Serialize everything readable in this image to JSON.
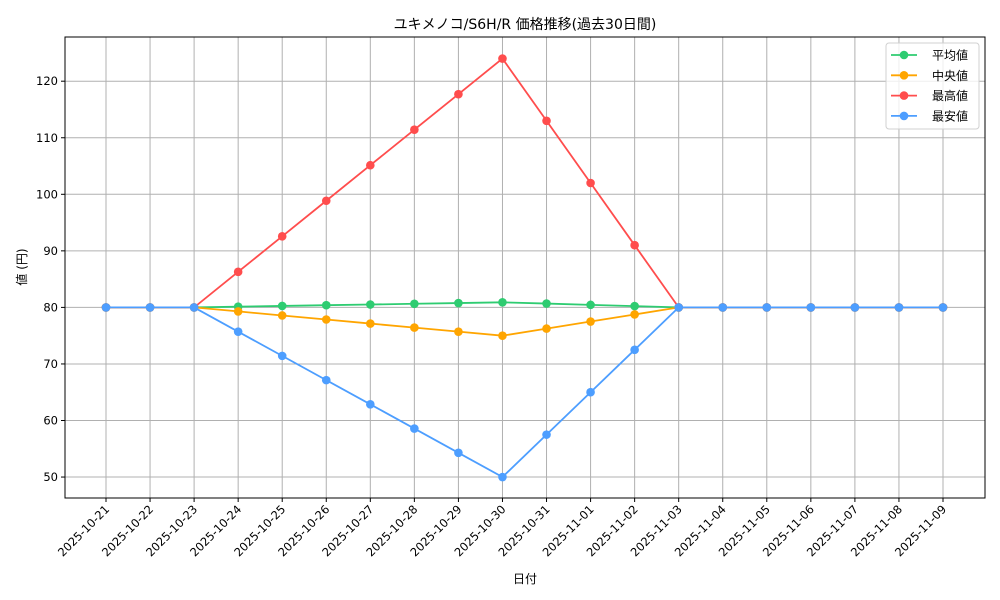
{
  "chart_data": {
    "type": "line",
    "title": "ユキメノコ/S6H/R 価格推移(過去30日間)",
    "xlabel": "日付",
    "ylabel": "値 (円)",
    "ylim": [
      46.5,
      127.8
    ],
    "yticks": [
      50,
      60,
      70,
      80,
      90,
      100,
      110,
      120
    ],
    "grid": true,
    "legend_position": "upper right",
    "categories": [
      "2025-10-21",
      "2025-10-22",
      "2025-10-23",
      "2025-10-24",
      "2025-10-25",
      "2025-10-26",
      "2025-10-27",
      "2025-10-28",
      "2025-10-29",
      "2025-10-30",
      "2025-10-31",
      "2025-11-01",
      "2025-11-02",
      "2025-11-03",
      "2025-11-04",
      "2025-11-05",
      "2025-11-06",
      "2025-11-07",
      "2025-11-08",
      "2025-11-09"
    ],
    "series": [
      {
        "name": "平均値",
        "color": "#2ecc71",
        "values": [
          80,
          80,
          80,
          80.13,
          80.26,
          80.39,
          80.51,
          80.64,
          80.77,
          80.9,
          80.68,
          80.45,
          80.23,
          80,
          80,
          80,
          80,
          80,
          80,
          80
        ]
      },
      {
        "name": "中央値",
        "color": "#ffa500",
        "values": [
          80,
          80,
          80,
          79.29,
          78.57,
          77.86,
          77.14,
          76.43,
          75.71,
          75,
          76.25,
          77.5,
          78.75,
          80,
          80,
          80,
          80,
          80,
          80,
          80
        ]
      },
      {
        "name": "最高値",
        "color": "#ff4d4d",
        "values": [
          80,
          80,
          80,
          86.29,
          92.57,
          98.86,
          105.14,
          111.43,
          117.71,
          124,
          113,
          102,
          91,
          80,
          80,
          80,
          80,
          80,
          80,
          80
        ]
      },
      {
        "name": "最安値",
        "color": "#4d9eff",
        "values": [
          80,
          80,
          80,
          75.71,
          71.43,
          67.14,
          62.86,
          58.57,
          54.29,
          50,
          57.5,
          65,
          72.5,
          80,
          80,
          80,
          80,
          80,
          80,
          80
        ]
      }
    ]
  }
}
